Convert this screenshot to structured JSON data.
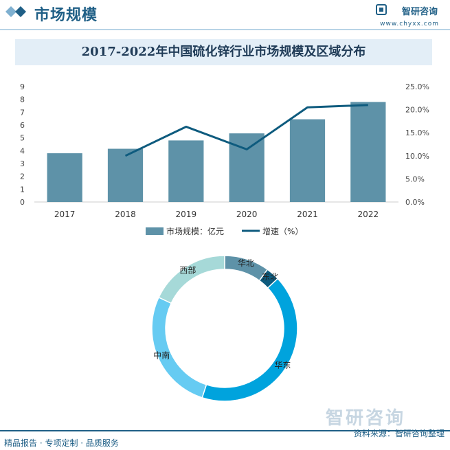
{
  "header": {
    "title": "市场规模",
    "brand": "智研咨询",
    "url": "www.chyxx.com"
  },
  "chart_data": [
    {
      "type": "bar",
      "title": "2017-2022年中国硫化锌行业市场规模及区域分布",
      "categories": [
        "2017",
        "2018",
        "2019",
        "2020",
        "2021",
        "2022"
      ],
      "series": [
        {
          "name": "市场规模：亿元",
          "kind": "bar",
          "axis": "left",
          "color": "#5e92a8",
          "values": [
            3.8,
            4.15,
            4.8,
            5.35,
            6.45,
            7.8
          ]
        },
        {
          "name": "增速（%）",
          "kind": "line",
          "axis": "right",
          "color": "#0e5b7e",
          "values": [
            null,
            10.0,
            16.3,
            11.4,
            20.5,
            21.0
          ]
        }
      ],
      "yleft": {
        "ticks": [
          "0",
          "1",
          "2",
          "3",
          "4",
          "5",
          "6",
          "7",
          "8",
          "9"
        ],
        "ylim": [
          0,
          9
        ]
      },
      "yright": {
        "ticks": [
          "0.0%",
          "5.0%",
          "10.0%",
          "15.0%",
          "20.0%",
          "25.0%"
        ],
        "ylim": [
          0,
          25
        ]
      },
      "legend": "bottom"
    },
    {
      "type": "pie",
      "donut": true,
      "labels": [
        "华北",
        "东北",
        "华东",
        "中南",
        "西部"
      ],
      "values": [
        10,
        3,
        42,
        27,
        18
      ],
      "colors": [
        "#5e92a8",
        "#0e5b7e",
        "#00a3dd",
        "#66cbf2",
        "#a6d9d8"
      ]
    }
  ],
  "footer": {
    "slogan": "精品报告 · 专项定制 · 品质服务",
    "source": "资料来源：智研咨询整理",
    "watermark": "智研咨询"
  }
}
